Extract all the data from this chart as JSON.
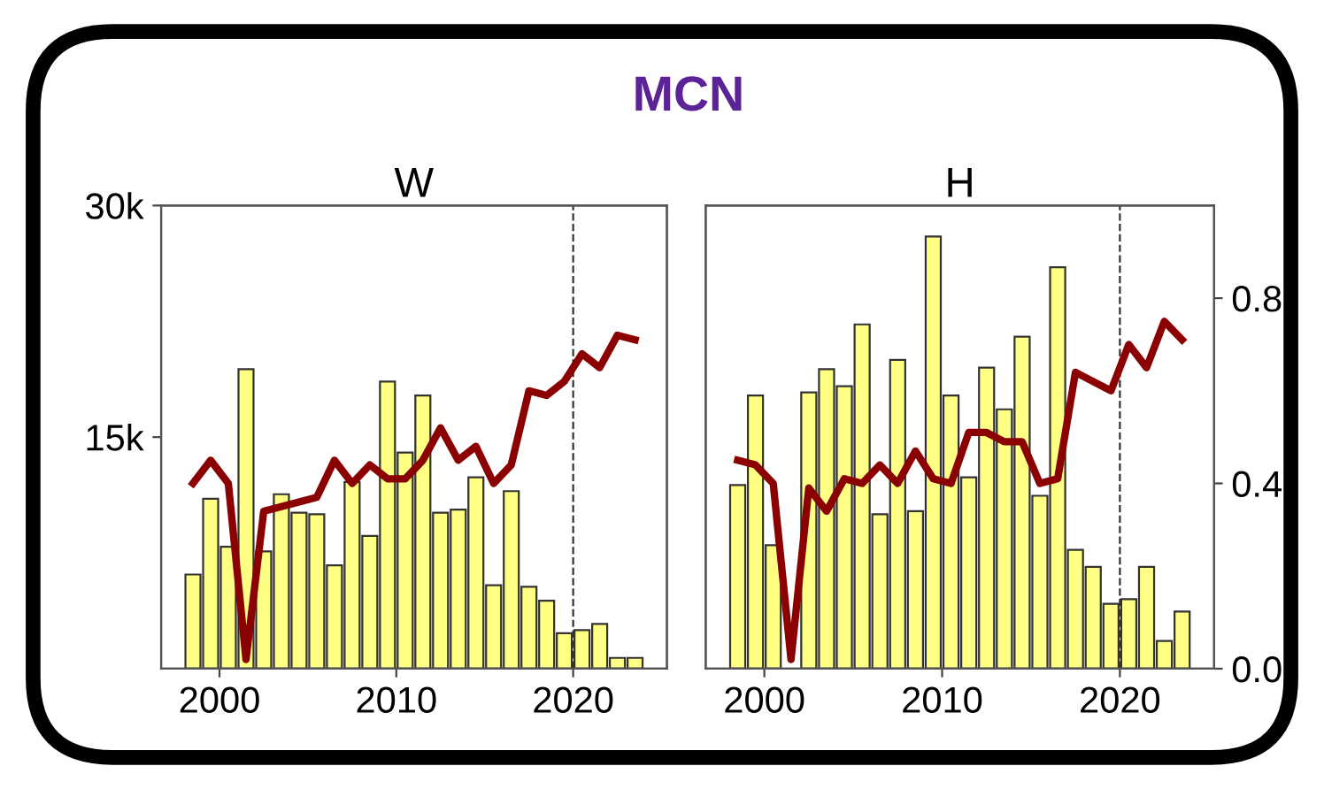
{
  "chart_data": [
    {
      "type": "bar",
      "title": "MCN",
      "subtitle": "W",
      "x": [
        1998.5,
        1999.5,
        2000.5,
        2001.5,
        2002.5,
        2003.5,
        2004.5,
        2005.5,
        2006.5,
        2007.5,
        2008.5,
        2009.5,
        2010.5,
        2011.5,
        2012.5,
        2013.5,
        2014.5,
        2015.5,
        2016.5,
        2017.5,
        2018.5,
        2019.5,
        2020.5,
        2021.5,
        2022.5,
        2023.5
      ],
      "series": [
        {
          "color": "#ffff66",
          "values": [
            6100,
            11000,
            7900,
            19400,
            7600,
            11300,
            10100,
            10000,
            6700,
            12100,
            8600,
            18600,
            14000,
            17700,
            10100,
            10300,
            12400,
            5400,
            11500,
            5300,
            4400,
            2300,
            2500,
            2900,
            700,
            700
          ]
        },
        {
          "type": "line",
          "axis": "y2",
          "color": "#8b0000",
          "values": [
            0.4,
            0.45,
            0.4,
            0.02,
            0.34,
            0.35,
            0.36,
            0.37,
            0.45,
            0.4,
            0.44,
            0.41,
            0.41,
            0.45,
            0.52,
            0.45,
            0.48,
            0.4,
            0.44,
            0.6,
            0.59,
            0.62,
            0.68,
            0.65,
            0.72,
            0.71
          ]
        }
      ],
      "xlim": [
        1996.7,
        2025.3
      ],
      "xticks": [
        2000,
        2010,
        2020
      ],
      "ylim": [
        0,
        30000
      ],
      "yticks": [
        {
          "value": 15000,
          "label": "15k"
        },
        {
          "value": 30000,
          "label": "30k"
        }
      ],
      "y2lim": [
        0,
        1
      ],
      "ref_lines": [
        {
          "axis": "x",
          "value": 2020,
          "line_style": "dashed",
          "color": "#333333"
        }
      ],
      "grid": false,
      "legend": false
    },
    {
      "type": "bar",
      "subtitle": "H",
      "x": [
        1998.5,
        1999.5,
        2000.5,
        2001.5,
        2002.5,
        2003.5,
        2004.5,
        2005.5,
        2006.5,
        2007.5,
        2008.5,
        2009.5,
        2010.5,
        2011.5,
        2012.5,
        2013.5,
        2014.5,
        2015.5,
        2016.5,
        2017.5,
        2018.5,
        2019.5,
        2020.5,
        2021.5,
        2022.5,
        2023.5
      ],
      "series": [
        {
          "color": "#ffff66",
          "values": [
            11900,
            17700,
            8000,
            null,
            17900,
            19400,
            18300,
            22300,
            10000,
            20000,
            10200,
            28000,
            17700,
            12400,
            19500,
            16800,
            21500,
            11200,
            26000,
            7700,
            6600,
            4200,
            4500,
            6600,
            1800,
            3700
          ]
        },
        {
          "type": "line",
          "axis": "y2",
          "color": "#8b0000",
          "values": [
            0.45,
            0.44,
            0.4,
            0.02,
            0.39,
            0.34,
            0.41,
            0.4,
            0.44,
            0.4,
            0.47,
            0.41,
            0.4,
            0.51,
            0.51,
            0.49,
            0.49,
            0.4,
            0.41,
            0.64,
            0.62,
            0.6,
            0.7,
            0.65,
            0.75,
            0.71
          ]
        }
      ],
      "xlim": [
        1996.7,
        2025.3
      ],
      "xticks": [
        2000,
        2010,
        2020
      ],
      "ylim": [
        0,
        30000
      ],
      "y2lim": [
        0,
        1
      ],
      "y2ticks": [
        {
          "value": 0,
          "label": "0.0"
        },
        {
          "value": 0.4,
          "label": "0.4"
        },
        {
          "value": 0.8,
          "label": "0.8"
        }
      ],
      "ref_lines": [
        {
          "axis": "x",
          "value": 2020,
          "line_style": "dashed",
          "color": "#333333"
        }
      ],
      "grid": false,
      "legend": false
    }
  ]
}
